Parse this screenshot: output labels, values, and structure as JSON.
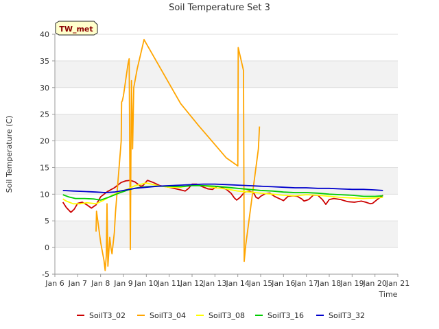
{
  "chart_data": {
    "type": "line",
    "title": "Soil Temperature Set 3",
    "xlabel": "Time",
    "ylabel": "Soil Temperature (C)",
    "tag": "TW_met",
    "xlim": [
      6,
      21
    ],
    "ylim": [
      -5,
      40
    ],
    "x_ticks": [
      {
        "value": 6,
        "label": "Jan 6"
      },
      {
        "value": 7,
        "label": "Jan 7"
      },
      {
        "value": 8,
        "label": "Jan 8"
      },
      {
        "value": 9,
        "label": "Jan 9"
      },
      {
        "value": 10,
        "label": "Jan 10"
      },
      {
        "value": 11,
        "label": "Jan 11"
      },
      {
        "value": 12,
        "label": "Jan 12"
      },
      {
        "value": 13,
        "label": "Jan 13"
      },
      {
        "value": 14,
        "label": "Jan 14"
      },
      {
        "value": 15,
        "label": "Jan 15"
      },
      {
        "value": 16,
        "label": "Jan 16"
      },
      {
        "value": 17,
        "label": "Jan 17"
      },
      {
        "value": 18,
        "label": "Jan 18"
      },
      {
        "value": 19,
        "label": "Jan 19"
      },
      {
        "value": 20,
        "label": "Jan 20"
      },
      {
        "value": 21,
        "label": "Jan 21"
      }
    ],
    "y_ticks": [
      -5,
      0,
      5,
      10,
      15,
      20,
      25,
      30,
      35,
      40
    ],
    "series": [
      {
        "name": "SoilT3_02",
        "color": "#cc0000",
        "points": [
          [
            6.35,
            8.5
          ],
          [
            6.5,
            7.5
          ],
          [
            6.7,
            6.6
          ],
          [
            6.85,
            7.2
          ],
          [
            7.0,
            8.3
          ],
          [
            7.2,
            8.5
          ],
          [
            7.4,
            8.0
          ],
          [
            7.6,
            7.4
          ],
          [
            7.8,
            8.0
          ],
          [
            8.0,
            9.5
          ],
          [
            8.3,
            10.5
          ],
          [
            8.6,
            11.2
          ],
          [
            8.9,
            12.2
          ],
          [
            9.1,
            12.5
          ],
          [
            9.3,
            12.6
          ],
          [
            9.5,
            12.3
          ],
          [
            9.75,
            11.5
          ],
          [
            9.85,
            11.6
          ],
          [
            10.05,
            12.6
          ],
          [
            10.3,
            12.2
          ],
          [
            10.6,
            11.6
          ],
          [
            11.0,
            11.3
          ],
          [
            11.4,
            10.9
          ],
          [
            11.7,
            10.6
          ],
          [
            11.85,
            11.1
          ],
          [
            12.0,
            11.9
          ],
          [
            12.2,
            11.9
          ],
          [
            12.4,
            11.5
          ],
          [
            12.7,
            11.0
          ],
          [
            12.9,
            10.9
          ],
          [
            13.1,
            11.5
          ],
          [
            13.3,
            11.3
          ],
          [
            13.5,
            10.9
          ],
          [
            13.7,
            10.2
          ],
          [
            13.85,
            9.3
          ],
          [
            13.95,
            8.9
          ],
          [
            14.1,
            9.4
          ],
          [
            14.3,
            10.4
          ],
          [
            14.5,
            10.6
          ],
          [
            14.7,
            10.2
          ],
          [
            14.8,
            9.4
          ],
          [
            14.9,
            9.2
          ],
          [
            15.0,
            9.6
          ],
          [
            15.2,
            10.1
          ],
          [
            15.4,
            10.2
          ],
          [
            15.6,
            9.6
          ],
          [
            15.8,
            9.2
          ],
          [
            16.0,
            8.8
          ],
          [
            16.2,
            9.6
          ],
          [
            16.4,
            9.7
          ],
          [
            16.6,
            9.6
          ],
          [
            16.8,
            9.1
          ],
          [
            16.9,
            8.7
          ],
          [
            17.1,
            9.0
          ],
          [
            17.3,
            9.8
          ],
          [
            17.5,
            9.8
          ],
          [
            17.7,
            9.0
          ],
          [
            17.85,
            8.1
          ],
          [
            18.0,
            9.0
          ],
          [
            18.2,
            9.2
          ],
          [
            18.5,
            9.0
          ],
          [
            18.8,
            8.6
          ],
          [
            19.1,
            8.5
          ],
          [
            19.4,
            8.7
          ],
          [
            19.6,
            8.5
          ],
          [
            19.8,
            8.2
          ],
          [
            19.9,
            8.3
          ],
          [
            20.1,
            9.0
          ],
          [
            20.35,
            9.8
          ]
        ]
      },
      {
        "name": "SoilT3_04",
        "color": "#ffa500",
        "points": [
          [
            7.8,
            3.0
          ],
          [
            7.82,
            6.8
          ],
          [
            8.0,
            1.0
          ],
          [
            8.15,
            -2.5
          ],
          [
            8.2,
            -4.3
          ],
          [
            8.25,
            -1.5
          ],
          [
            8.28,
            8.2
          ],
          [
            8.32,
            -3.5
          ],
          [
            8.4,
            1.9
          ],
          [
            8.45,
            0.0
          ],
          [
            8.5,
            -1.2
          ],
          [
            8.6,
            2.8
          ],
          [
            8.65,
            6.5
          ],
          [
            8.9,
            20.0
          ],
          [
            8.92,
            27.3
          ],
          [
            8.95,
            27.5
          ],
          [
            9.0,
            28.5
          ],
          [
            9.2,
            34.5
          ],
          [
            9.25,
            35.4
          ],
          [
            9.28,
            15.0
          ],
          [
            9.3,
            -0.4
          ],
          [
            9.33,
            20.0
          ],
          [
            9.35,
            31.3
          ],
          [
            9.4,
            18.5
          ],
          [
            9.45,
            30.0
          ],
          [
            9.6,
            33.5
          ],
          [
            9.9,
            39.0
          ],
          [
            10.5,
            34.5
          ],
          [
            11.5,
            27.0
          ],
          [
            12.3,
            22.8
          ],
          [
            12.8,
            20.3
          ],
          [
            13.5,
            16.8
          ],
          [
            14.0,
            15.3
          ],
          [
            14.02,
            37.5
          ],
          [
            14.25,
            33.2
          ],
          [
            14.28,
            -2.6
          ],
          [
            14.35,
            0.5
          ],
          [
            14.9,
            18.5
          ],
          [
            14.95,
            22.7
          ]
        ]
      },
      {
        "name": "SoilT3_08",
        "color": "#ffff00",
        "points": [
          [
            6.35,
            9.1
          ],
          [
            6.5,
            8.7
          ],
          [
            6.8,
            8.2
          ],
          [
            7.1,
            8.2
          ],
          [
            7.4,
            8.4
          ],
          [
            7.8,
            8.2
          ],
          [
            8.1,
            8.8
          ],
          [
            8.5,
            9.8
          ],
          [
            8.9,
            10.5
          ],
          [
            9.2,
            11.0
          ],
          [
            9.5,
            11.6
          ],
          [
            10.0,
            12.1
          ],
          [
            10.5,
            11.6
          ],
          [
            11.0,
            11.3
          ],
          [
            11.5,
            11.3
          ],
          [
            12.0,
            11.7
          ],
          [
            12.5,
            11.6
          ],
          [
            13.0,
            11.2
          ],
          [
            13.5,
            11.0
          ],
          [
            14.0,
            10.6
          ],
          [
            14.5,
            10.4
          ],
          [
            15.0,
            10.2
          ],
          [
            15.5,
            10.0
          ],
          [
            16.0,
            9.8
          ],
          [
            16.5,
            9.7
          ],
          [
            17.0,
            9.9
          ],
          [
            17.5,
            9.8
          ],
          [
            18.0,
            9.6
          ],
          [
            18.5,
            9.4
          ],
          [
            19.0,
            9.3
          ],
          [
            19.5,
            9.2
          ],
          [
            20.0,
            9.3
          ],
          [
            20.35,
            9.4
          ]
        ]
      },
      {
        "name": "SoilT3_16",
        "color": "#00cc00",
        "points": [
          [
            6.35,
            9.9
          ],
          [
            6.6,
            9.5
          ],
          [
            6.9,
            9.2
          ],
          [
            7.3,
            9.2
          ],
          [
            7.7,
            9.1
          ],
          [
            8.0,
            8.9
          ],
          [
            8.4,
            9.5
          ],
          [
            8.8,
            10.2
          ],
          [
            9.2,
            10.8
          ],
          [
            9.6,
            11.2
          ],
          [
            10.0,
            11.4
          ],
          [
            10.5,
            11.5
          ],
          [
            11.0,
            11.5
          ],
          [
            11.5,
            11.4
          ],
          [
            12.0,
            11.6
          ],
          [
            12.5,
            11.6
          ],
          [
            13.0,
            11.5
          ],
          [
            13.5,
            11.3
          ],
          [
            14.0,
            11.1
          ],
          [
            14.5,
            10.9
          ],
          [
            15.0,
            10.7
          ],
          [
            15.5,
            10.6
          ],
          [
            16.0,
            10.4
          ],
          [
            16.5,
            10.3
          ],
          [
            17.0,
            10.3
          ],
          [
            17.5,
            10.2
          ],
          [
            18.0,
            10.0
          ],
          [
            18.5,
            9.9
          ],
          [
            19.0,
            9.8
          ],
          [
            19.5,
            9.6
          ],
          [
            20.0,
            9.6
          ],
          [
            20.35,
            9.7
          ]
        ]
      },
      {
        "name": "SoilT3_32",
        "color": "#0000cc",
        "points": [
          [
            6.35,
            10.7
          ],
          [
            6.8,
            10.6
          ],
          [
            7.3,
            10.5
          ],
          [
            7.8,
            10.4
          ],
          [
            8.2,
            10.3
          ],
          [
            8.6,
            10.4
          ],
          [
            9.0,
            10.7
          ],
          [
            9.5,
            11.1
          ],
          [
            10.0,
            11.3
          ],
          [
            10.5,
            11.5
          ],
          [
            11.0,
            11.6
          ],
          [
            11.5,
            11.7
          ],
          [
            12.0,
            11.8
          ],
          [
            12.5,
            11.9
          ],
          [
            13.0,
            11.9
          ],
          [
            13.5,
            11.8
          ],
          [
            14.0,
            11.7
          ],
          [
            14.5,
            11.6
          ],
          [
            15.0,
            11.5
          ],
          [
            15.5,
            11.4
          ],
          [
            16.0,
            11.3
          ],
          [
            16.5,
            11.2
          ],
          [
            17.0,
            11.2
          ],
          [
            17.5,
            11.1
          ],
          [
            18.0,
            11.1
          ],
          [
            18.5,
            11.0
          ],
          [
            19.0,
            10.9
          ],
          [
            19.5,
            10.9
          ],
          [
            20.0,
            10.8
          ],
          [
            20.35,
            10.7
          ]
        ]
      }
    ],
    "legend_position": "bottom"
  }
}
